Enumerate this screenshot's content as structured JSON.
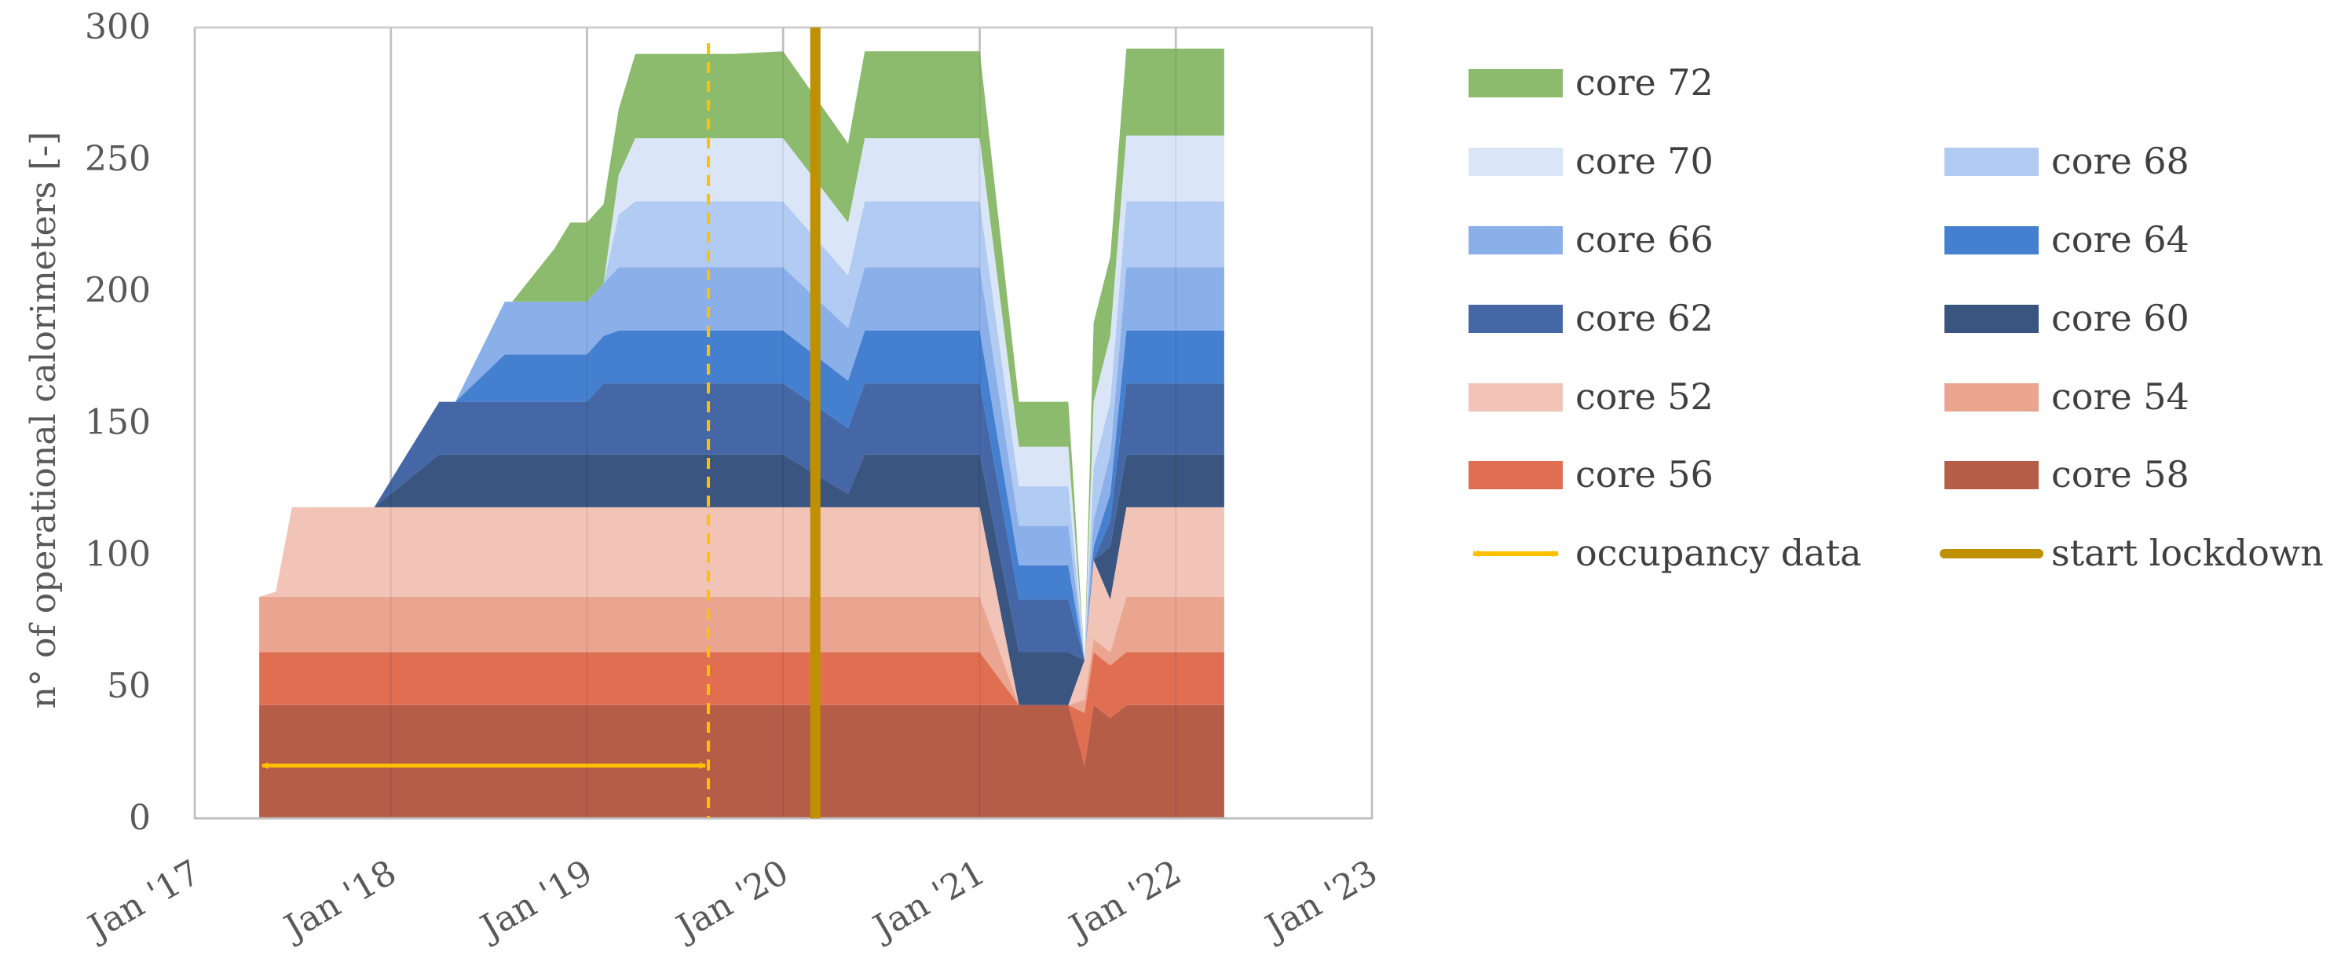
{
  "chart_data": {
    "type": "area",
    "stacked": true,
    "ylabel": "n° of operational calorimeters [-]",
    "xlabel": "",
    "ylim": [
      0,
      300
    ],
    "yticks": [
      0,
      50,
      100,
      150,
      200,
      250,
      300
    ],
    "xlim": [
      "2017-01-01",
      "2023-01-01"
    ],
    "xticks": [
      {
        "date": "2017-01-01",
        "label": "Jan '17"
      },
      {
        "date": "2018-01-01",
        "label": "Jan '18"
      },
      {
        "date": "2019-01-01",
        "label": "Jan '19"
      },
      {
        "date": "2020-01-01",
        "label": "Jan '20"
      },
      {
        "date": "2021-01-01",
        "label": "Jan '21"
      },
      {
        "date": "2022-01-01",
        "label": "Jan '22"
      },
      {
        "date": "2023-01-01",
        "label": "Jan '23"
      }
    ],
    "grid": "vertical",
    "legend_position": "right",
    "dates": [
      "2017-05-01",
      "2017-06-01",
      "2017-07-01",
      "2017-11-30",
      "2017-12-01",
      "2018-04-01",
      "2018-05-01",
      "2018-08-01",
      "2018-08-15",
      "2018-11-01",
      "2018-12-01",
      "2019-01-01",
      "2019-02-01",
      "2019-03-01",
      "2019-04-01",
      "2019-09-01",
      "2019-10-01",
      "2020-01-01",
      "2020-05-01",
      "2020-06-01",
      "2020-07-01",
      "2021-01-01",
      "2021-03-15",
      "2021-04-15",
      "2021-06-15",
      "2021-07-15",
      "2021-08-01",
      "2021-09-01",
      "2021-10-01",
      "2021-11-01",
      "2022-04-01"
    ],
    "series": [
      {
        "name": "core 58",
        "color": "#b65d48",
        "values": [
          43,
          43,
          43,
          43,
          43,
          43,
          43,
          43,
          43,
          43,
          43,
          43,
          43,
          43,
          43,
          43,
          43,
          43,
          43,
          43,
          43,
          43,
          43,
          43,
          43,
          20,
          43,
          38,
          43,
          43,
          43
        ]
      },
      {
        "name": "core 56",
        "color": "#e06f52",
        "values": [
          20,
          20,
          20,
          20,
          20,
          20,
          20,
          20,
          20,
          20,
          20,
          20,
          20,
          20,
          20,
          20,
          20,
          20,
          20,
          20,
          20,
          20,
          0,
          0,
          0,
          20,
          20,
          20,
          20,
          20,
          20
        ]
      },
      {
        "name": "core 54",
        "color": "#eaa591",
        "values": [
          21,
          21,
          21,
          21,
          21,
          21,
          21,
          21,
          21,
          21,
          21,
          21,
          21,
          21,
          21,
          21,
          21,
          21,
          21,
          21,
          21,
          21,
          0,
          0,
          0,
          5,
          5,
          5,
          21,
          21,
          21
        ]
      },
      {
        "name": "core 52",
        "color": "#f2c3b7",
        "values": [
          0,
          2,
          34,
          34,
          34,
          34,
          34,
          34,
          34,
          34,
          34,
          34,
          34,
          34,
          34,
          34,
          34,
          34,
          34,
          34,
          34,
          34,
          0,
          0,
          0,
          15,
          30,
          20,
          34,
          34,
          34
        ]
      },
      {
        "name": "core 60",
        "color": "#3a557f",
        "values": [
          0,
          0,
          0,
          0,
          0,
          20,
          20,
          20,
          20,
          20,
          20,
          20,
          20,
          20,
          20,
          20,
          20,
          20,
          5,
          20,
          20,
          20,
          20,
          20,
          20,
          0,
          0,
          20,
          20,
          20,
          20
        ]
      },
      {
        "name": "core 62",
        "color": "#4567a6",
        "values": [
          0,
          0,
          0,
          0,
          0,
          20,
          20,
          20,
          20,
          20,
          20,
          20,
          27,
          27,
          27,
          27,
          27,
          27,
          25,
          27,
          27,
          27,
          20,
          20,
          20,
          0,
          0,
          10,
          27,
          27,
          27
        ]
      },
      {
        "name": "core 64",
        "color": "#4580d0",
        "values": [
          0,
          0,
          0,
          0,
          0,
          0,
          0,
          18,
          18,
          18,
          18,
          18,
          18,
          20,
          20,
          20,
          20,
          20,
          18,
          20,
          20,
          20,
          13,
          13,
          13,
          0,
          5,
          10,
          20,
          20,
          20
        ]
      },
      {
        "name": "core 66",
        "color": "#8aafe9",
        "values": [
          0,
          0,
          0,
          0,
          0,
          0,
          0,
          20,
          20,
          20,
          20,
          20,
          20,
          24,
          24,
          24,
          24,
          24,
          20,
          24,
          24,
          24,
          15,
          15,
          15,
          0,
          10,
          15,
          24,
          24,
          24
        ]
      },
      {
        "name": "core 68",
        "color": "#b1cbf2",
        "values": [
          0,
          0,
          0,
          0,
          0,
          0,
          0,
          0,
          0,
          0,
          0,
          0,
          0,
          20,
          25,
          25,
          25,
          25,
          20,
          25,
          25,
          25,
          15,
          15,
          15,
          0,
          20,
          20,
          25,
          25,
          25
        ]
      },
      {
        "name": "core 70",
        "color": "#dae6f8",
        "values": [
          0,
          0,
          0,
          0,
          0,
          0,
          0,
          0,
          0,
          0,
          0,
          0,
          0,
          15,
          24,
          24,
          24,
          24,
          20,
          24,
          24,
          24,
          15,
          15,
          15,
          0,
          25,
          25,
          25,
          25,
          25
        ]
      },
      {
        "name": "core 72",
        "color": "#8cbb6e",
        "values": [
          0,
          0,
          0,
          0,
          0,
          0,
          0,
          0,
          0,
          20,
          30,
          30,
          30,
          25,
          32,
          32,
          32,
          33,
          30,
          33,
          33,
          33,
          17,
          17,
          17,
          0,
          30,
          30,
          33,
          33,
          33
        ]
      }
    ],
    "annotations": [
      {
        "type": "double-arrow",
        "name": "occupancy data",
        "color": "#ffc000",
        "from": "2017-05-01",
        "to": "2019-08-15",
        "y": 20
      },
      {
        "type": "dashed-vline",
        "color": "#ffc000",
        "date": "2019-08-15"
      },
      {
        "type": "vline",
        "name": "start lockdown",
        "color": "#bf9000",
        "date": "2020-03-01"
      }
    ],
    "legend_layout": [
      [
        "core 72",
        null
      ],
      [
        "core 70",
        "core 68"
      ],
      [
        "core 66",
        "core 64"
      ],
      [
        "core 62",
        "core 60"
      ],
      [
        "core 52",
        "core 54"
      ],
      [
        "core 56",
        "core 58"
      ],
      [
        "occupancy data",
        "start lockdown"
      ]
    ]
  }
}
